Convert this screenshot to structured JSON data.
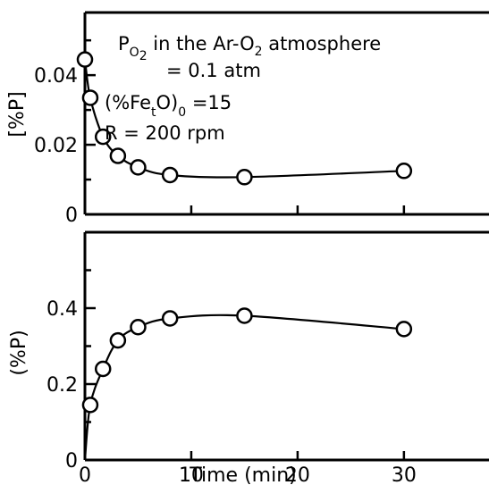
{
  "chart_data": [
    {
      "type": "scatter",
      "title": "",
      "xlabel": "",
      "ylabel": "[%P]",
      "xlim": [
        0,
        38
      ],
      "ylim": [
        0,
        0.058
      ],
      "yticks": [
        0,
        0.02,
        0.04
      ],
      "ytick_labels": [
        "0",
        "0.02",
        "0.04"
      ],
      "series": [
        {
          "x": [
            0,
            0.5,
            1.7,
            3.1,
            5,
            8,
            15,
            30
          ],
          "y": [
            0.0445,
            0.0335,
            0.0223,
            0.0168,
            0.0135,
            0.0113,
            0.0107,
            0.0125
          ]
        }
      ],
      "annotation": {
        "line1": {
          "p": "P",
          "p_sub": "O",
          "p_sub_sub": "2",
          "text": " in the Ar-O",
          "text_sub": "2",
          "text_end": " atmosphere"
        },
        "line2": "= 0.1 atm",
        "line3": {
          "a": "(%Fe",
          "a_sub": "t",
          "b": "O)",
          "b_sub": "0",
          "c": "  =15"
        },
        "line4": "R = 200 rpm"
      }
    },
    {
      "type": "scatter",
      "title": "",
      "xlabel": "Time (min)",
      "ylabel": "(%P)",
      "xlim": [
        0,
        38
      ],
      "ylim": [
        0,
        0.6
      ],
      "xticks": [
        0,
        10,
        20,
        30
      ],
      "xtick_labels": [
        "0",
        "10",
        "20",
        "30"
      ],
      "yticks": [
        0,
        0.2,
        0.4
      ],
      "ytick_labels": [
        "0",
        "0.2",
        "0.4"
      ],
      "series": [
        {
          "x": [
            0.5,
            1.7,
            3.1,
            5,
            8,
            15,
            30
          ],
          "y": [
            0.145,
            0.24,
            0.315,
            0.35,
            0.373,
            0.38,
            0.345
          ]
        }
      ]
    }
  ]
}
